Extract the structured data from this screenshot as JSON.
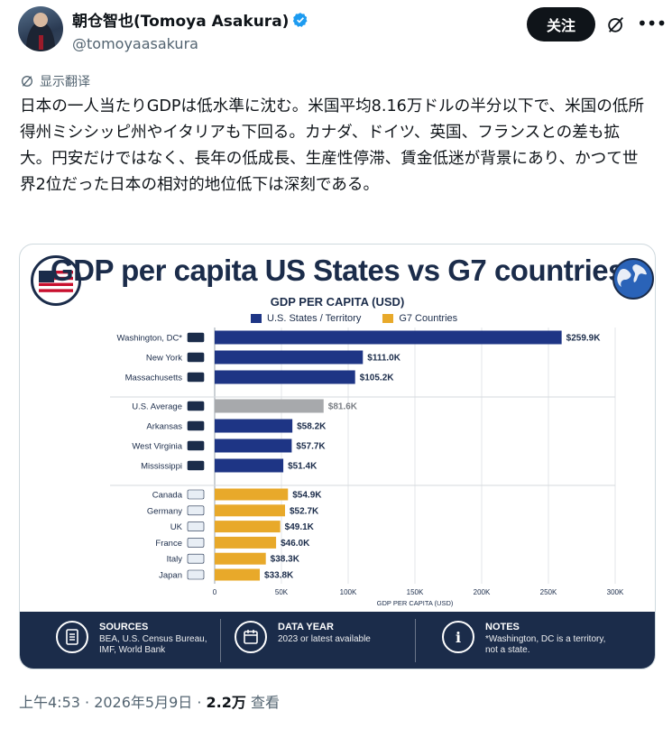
{
  "post": {
    "display_name": "朝仓智也(Tomoya Asakura)",
    "handle": "@tomoyaasakura",
    "follow_label": "关注",
    "translate_label": "显示翻译",
    "text": "日本の一人当たりGDPは低水準に沈む。米国平均8.16万ドルの半分以下で、米国の低所得州ミシシッピ州やイタリアも下回る。カナダ、ドイツ、英国、フランスとの差も拡大。円安だけではなく、長年の低成長、生産性停滞、賃金低迷が背景にあり、かつて世界2位だった日本の相対的地位低下は深刻である。",
    "time": "上午4:53 · 2026年5月9日 · ",
    "views": "2.2万",
    "views_label": " 查看"
  },
  "colors": {
    "accent_blue": "#1d9bf0",
    "navy": "#1b2c4a",
    "us_bar": "#1e3585",
    "avg_bar": "#a7a9ac",
    "g7_bar": "#e8a92a"
  },
  "icons": [
    "verified-badge-icon",
    "grok-icon",
    "more-icon",
    "translate-icon",
    "us-flag-icon",
    "globe-icon",
    "document-icon",
    "calendar-icon",
    "info-icon"
  ],
  "infographic": {
    "title": "GDP per capita US States vs G7 countries",
    "legend_us": "U.S. States / Territory",
    "legend_g7": "G7 Countries",
    "footer": {
      "sources_head": "SOURCES",
      "sources_body_1": "BEA, U.S. Census Bureau,",
      "sources_body_2": "IMF, World Bank",
      "year_head": "DATA YEAR",
      "year_body": "2023 or latest available",
      "notes_head": "NOTES",
      "notes_body_1": "*Washington, DC is a territory,",
      "notes_body_2": "not a state."
    }
  },
  "chart_data": {
    "type": "bar",
    "orientation": "horizontal",
    "title": "GDP PER CAPITA (USD)",
    "xlabel": "GDP PER CAPITA (USD)",
    "xlim": [
      0,
      300000
    ],
    "x_ticks": [
      "0",
      "50K",
      "100K",
      "150K",
      "200K",
      "250K",
      "300K"
    ],
    "grid": true,
    "legend_position": "top",
    "bars": [
      {
        "label": "Washington, DC*",
        "value": 259900,
        "value_label": "$259.9K",
        "group": "us"
      },
      {
        "label": "New York",
        "value": 111000,
        "value_label": "$111.0K",
        "group": "us"
      },
      {
        "label": "Massachusetts",
        "value": 105200,
        "value_label": "$105.2K",
        "group": "us"
      },
      {
        "label": "U.S. Average",
        "value": 81600,
        "value_label": "$81.6K",
        "group": "avg"
      },
      {
        "label": "Arkansas",
        "value": 58200,
        "value_label": "$58.2K",
        "group": "us"
      },
      {
        "label": "West Virginia",
        "value": 57700,
        "value_label": "$57.7K",
        "group": "us"
      },
      {
        "label": "Mississippi",
        "value": 51400,
        "value_label": "$51.4K",
        "group": "us"
      },
      {
        "label": "Canada",
        "value": 54900,
        "value_label": "$54.9K",
        "group": "g7"
      },
      {
        "label": "Germany",
        "value": 52700,
        "value_label": "$52.7K",
        "group": "g7"
      },
      {
        "label": "UK",
        "value": 49100,
        "value_label": "$49.1K",
        "group": "g7"
      },
      {
        "label": "France",
        "value": 46000,
        "value_label": "$46.0K",
        "group": "g7"
      },
      {
        "label": "Italy",
        "value": 38300,
        "value_label": "$38.3K",
        "group": "g7"
      },
      {
        "label": "Japan",
        "value": 33800,
        "value_label": "$33.8K",
        "group": "g7"
      }
    ]
  }
}
